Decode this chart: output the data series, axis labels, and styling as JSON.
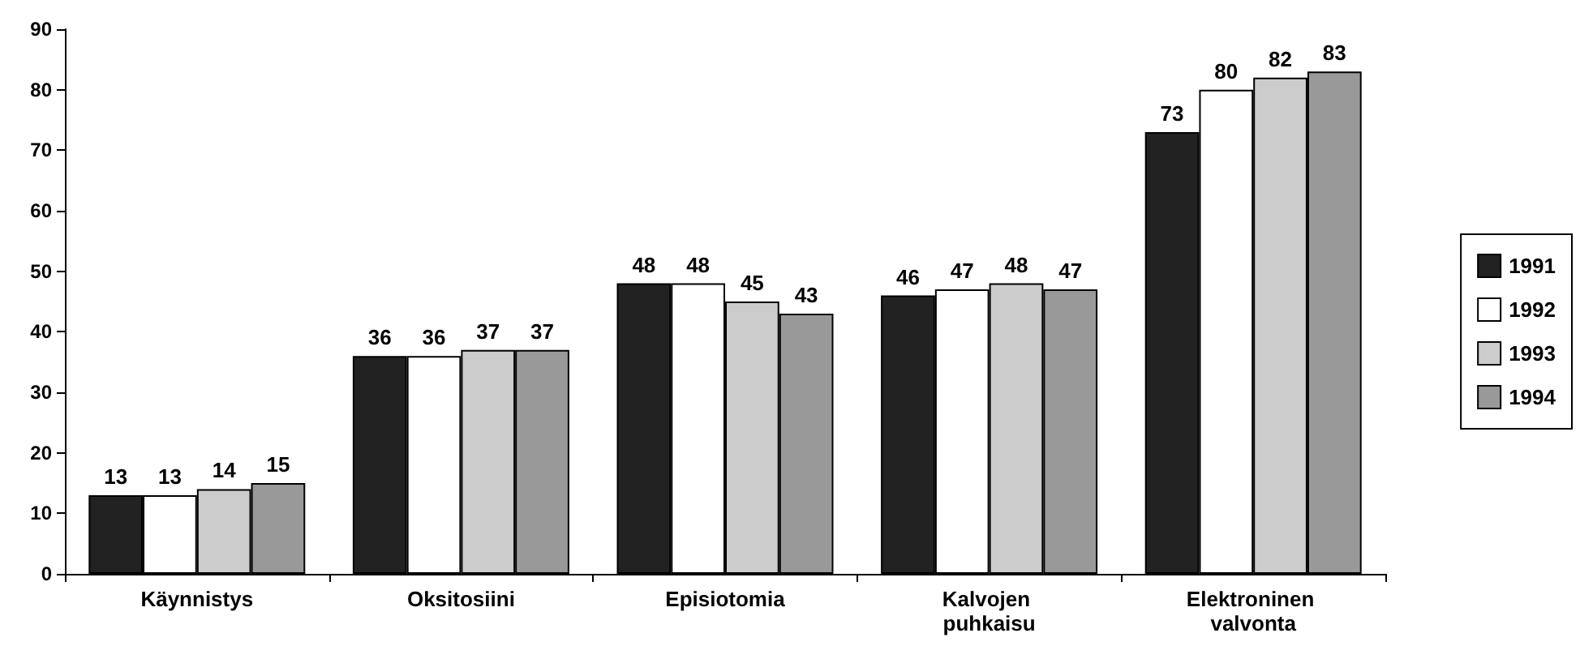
{
  "chart_data": {
    "type": "bar",
    "categories": [
      "Käynnistys",
      "Oksitosiini",
      "Episiotomia",
      "Kalvojen puhkaisu",
      "Elektroninen valvonta"
    ],
    "series": [
      {
        "name": "1991",
        "color": "#222222",
        "values": [
          13,
          36,
          48,
          46,
          73
        ]
      },
      {
        "name": "1992",
        "color": "#ffffff",
        "values": [
          13,
          36,
          48,
          47,
          80
        ]
      },
      {
        "name": "1993",
        "color": "#cccccc",
        "values": [
          14,
          37,
          45,
          48,
          82
        ]
      },
      {
        "name": "1994",
        "color": "#999999",
        "values": [
          15,
          37,
          43,
          47,
          83
        ]
      }
    ],
    "ylim": [
      0,
      90
    ],
    "yticks": [
      0,
      10,
      20,
      30,
      40,
      50,
      60,
      70,
      80,
      90
    ],
    "grid": false,
    "legend": "right",
    "data_labels": true
  }
}
